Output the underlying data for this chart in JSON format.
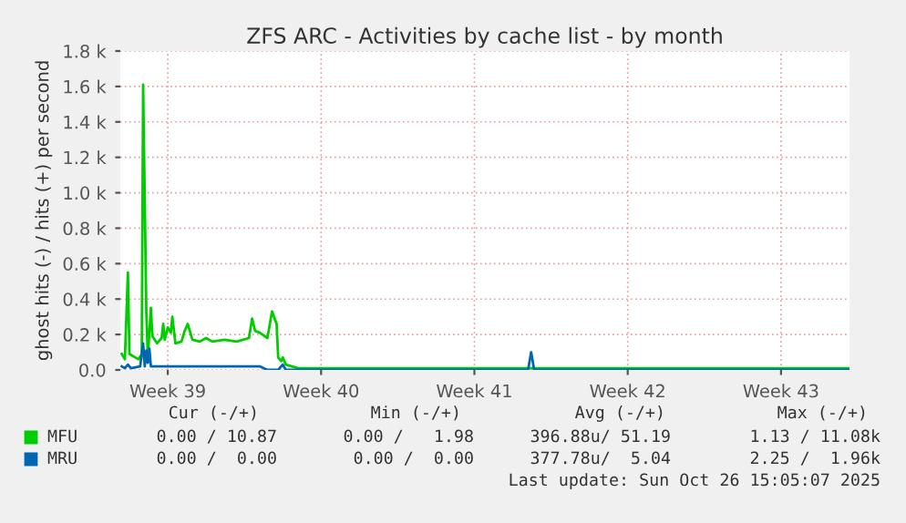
{
  "chart_data": {
    "type": "line",
    "title": "ZFS ARC - Activities by cache list - by month",
    "ylabel": "ghost hits (-) / hits (+) per second",
    "xlim": [
      "2025-09-23T08:00",
      "2025-10-26T15:00"
    ],
    "xticks": [
      {
        "value": "2025-09-25T12:00",
        "label": "Week 39"
      },
      {
        "value": "2025-10-02T12:00",
        "label": "Week 40"
      },
      {
        "value": "2025-10-09T12:00",
        "label": "Week 41"
      },
      {
        "value": "2025-10-16T12:00",
        "label": "Week 42"
      },
      {
        "value": "2025-10-23T12:00",
        "label": "Week 43"
      }
    ],
    "ylim": [
      0,
      1800
    ],
    "yticks": [
      {
        "value": 0,
        "label": "0.0"
      },
      {
        "value": 200,
        "label": "0.2 k"
      },
      {
        "value": 400,
        "label": "0.4 k"
      },
      {
        "value": 600,
        "label": "0.6 k"
      },
      {
        "value": 800,
        "label": "0.8 k"
      },
      {
        "value": 1000,
        "label": "1.0 k"
      },
      {
        "value": 1200,
        "label": "1.2 k"
      },
      {
        "value": 1400,
        "label": "1.4 k"
      },
      {
        "value": 1600,
        "label": "1.6 k"
      },
      {
        "value": 1800,
        "label": "1.8 k"
      }
    ],
    "grid": true,
    "legend": "bottom",
    "series": [
      {
        "name": "MFU",
        "color": "#00cc00",
        "x": [
          "2025-09-23T09:36",
          "2025-09-23T13:00",
          "2025-09-23T16:20",
          "2025-09-23T18:00",
          "2025-09-24T04:00",
          "2025-09-24T07:30",
          "2025-09-24T09:00",
          "2025-09-24T12:30",
          "2025-09-24T14:10",
          "2025-09-24T17:30",
          "2025-09-24T19:12",
          "2025-09-25T00:15",
          "2025-09-25T05:15",
          "2025-09-25T07:00",
          "2025-09-25T08:40",
          "2025-09-25T12:00",
          "2025-09-25T15:20",
          "2025-09-25T17:00",
          "2025-09-25T20:24",
          "2025-09-26T03:00",
          "2025-09-26T06:30",
          "2025-09-26T09:50",
          "2025-09-26T15:00",
          "2025-09-26T23:15",
          "2025-09-27T06:00",
          "2025-09-27T12:45",
          "2025-09-28T02:10",
          "2025-09-28T15:30",
          "2025-09-29T05:00",
          "2025-09-29T08:24",
          "2025-09-29T11:45",
          "2025-09-29T16:45",
          "2025-09-30T01:12",
          "2025-09-30T06:15",
          "2025-09-30T11:15",
          "2025-09-30T13:00",
          "2025-09-30T16:20",
          "2025-09-30T18:00",
          "2025-09-30T21:20",
          "2025-10-01T04:00",
          "2025-10-01T10:48",
          "2025-10-26T15:00"
        ],
        "values": [
          90,
          60,
          550,
          90,
          60,
          90,
          1610,
          330,
          70,
          350,
          190,
          150,
          180,
          260,
          170,
          240,
          210,
          300,
          150,
          160,
          220,
          260,
          170,
          160,
          180,
          160,
          170,
          160,
          180,
          290,
          220,
          210,
          180,
          330,
          260,
          70,
          50,
          70,
          30,
          20,
          10,
          10
        ]
      },
      {
        "name": "MRU",
        "color": "#0066b3",
        "x": [
          "2025-09-23T09:36",
          "2025-09-23T13:00",
          "2025-09-23T16:20",
          "2025-09-23T19:40",
          "2025-09-24T05:45",
          "2025-09-24T09:00",
          "2025-09-24T10:48",
          "2025-09-24T12:30",
          "2025-09-24T14:10",
          "2025-09-24T15:50",
          "2025-09-24T17:30",
          "2025-09-25T12:00",
          "2025-09-29T00:00",
          "2025-09-29T16:45",
          "2025-09-30T01:12",
          "2025-09-30T13:00",
          "2025-09-30T18:00",
          "2025-09-30T21:20",
          "2025-10-11T22:48",
          "2025-10-12T02:10",
          "2025-10-12T05:30",
          "2025-10-26T15:00"
        ],
        "values": [
          20,
          10,
          30,
          10,
          20,
          150,
          20,
          110,
          40,
          120,
          20,
          20,
          20,
          20,
          0,
          0,
          30,
          0,
          0,
          100,
          0,
          0
        ]
      }
    ],
    "annotations": [
      "Cur (-/+)",
      "Min (-/+)",
      "Avg (-/+)",
      "Max (-/+)",
      "0.00 / 10.87",
      "0.00 /   1.98",
      "396.88u/ 51.19",
      "1.13 / 11.08k",
      "0.00 /  0.00",
      "0.00 /  0.00",
      "377.78u/  5.04",
      "2.25 /  1.96k",
      "Last update: Sun Oct 26 15:05:07 2025"
    ]
  }
}
